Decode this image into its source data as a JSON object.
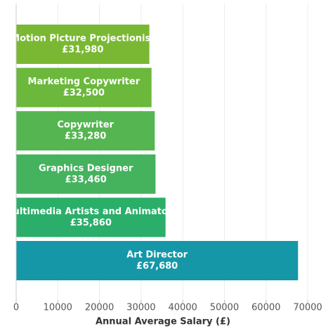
{
  "chart_data": {
    "type": "barh",
    "categories": [
      "Motion Picture Projectionist",
      "Marketing Copywriter",
      "Copywriter",
      "Graphics Designer",
      "Multimedia Artists and Animators",
      "Art Director"
    ],
    "values": [
      31980,
      32500,
      33280,
      33460,
      35860,
      67680
    ],
    "value_labels": [
      "£31,980",
      "£32,500",
      "£33,280",
      "£33,460",
      "£35,860",
      "£67,680"
    ],
    "colors": [
      "#7ab833",
      "#6bb83c",
      "#55b550",
      "#45b25e",
      "#2bae6a",
      "#1597a8"
    ],
    "xlim": [
      0,
      70000
    ],
    "xticks": [
      0,
      10000,
      20000,
      30000,
      40000,
      50000,
      60000,
      70000
    ],
    "xlabel": "Annual Average Salary (£)",
    "grid": true
  }
}
